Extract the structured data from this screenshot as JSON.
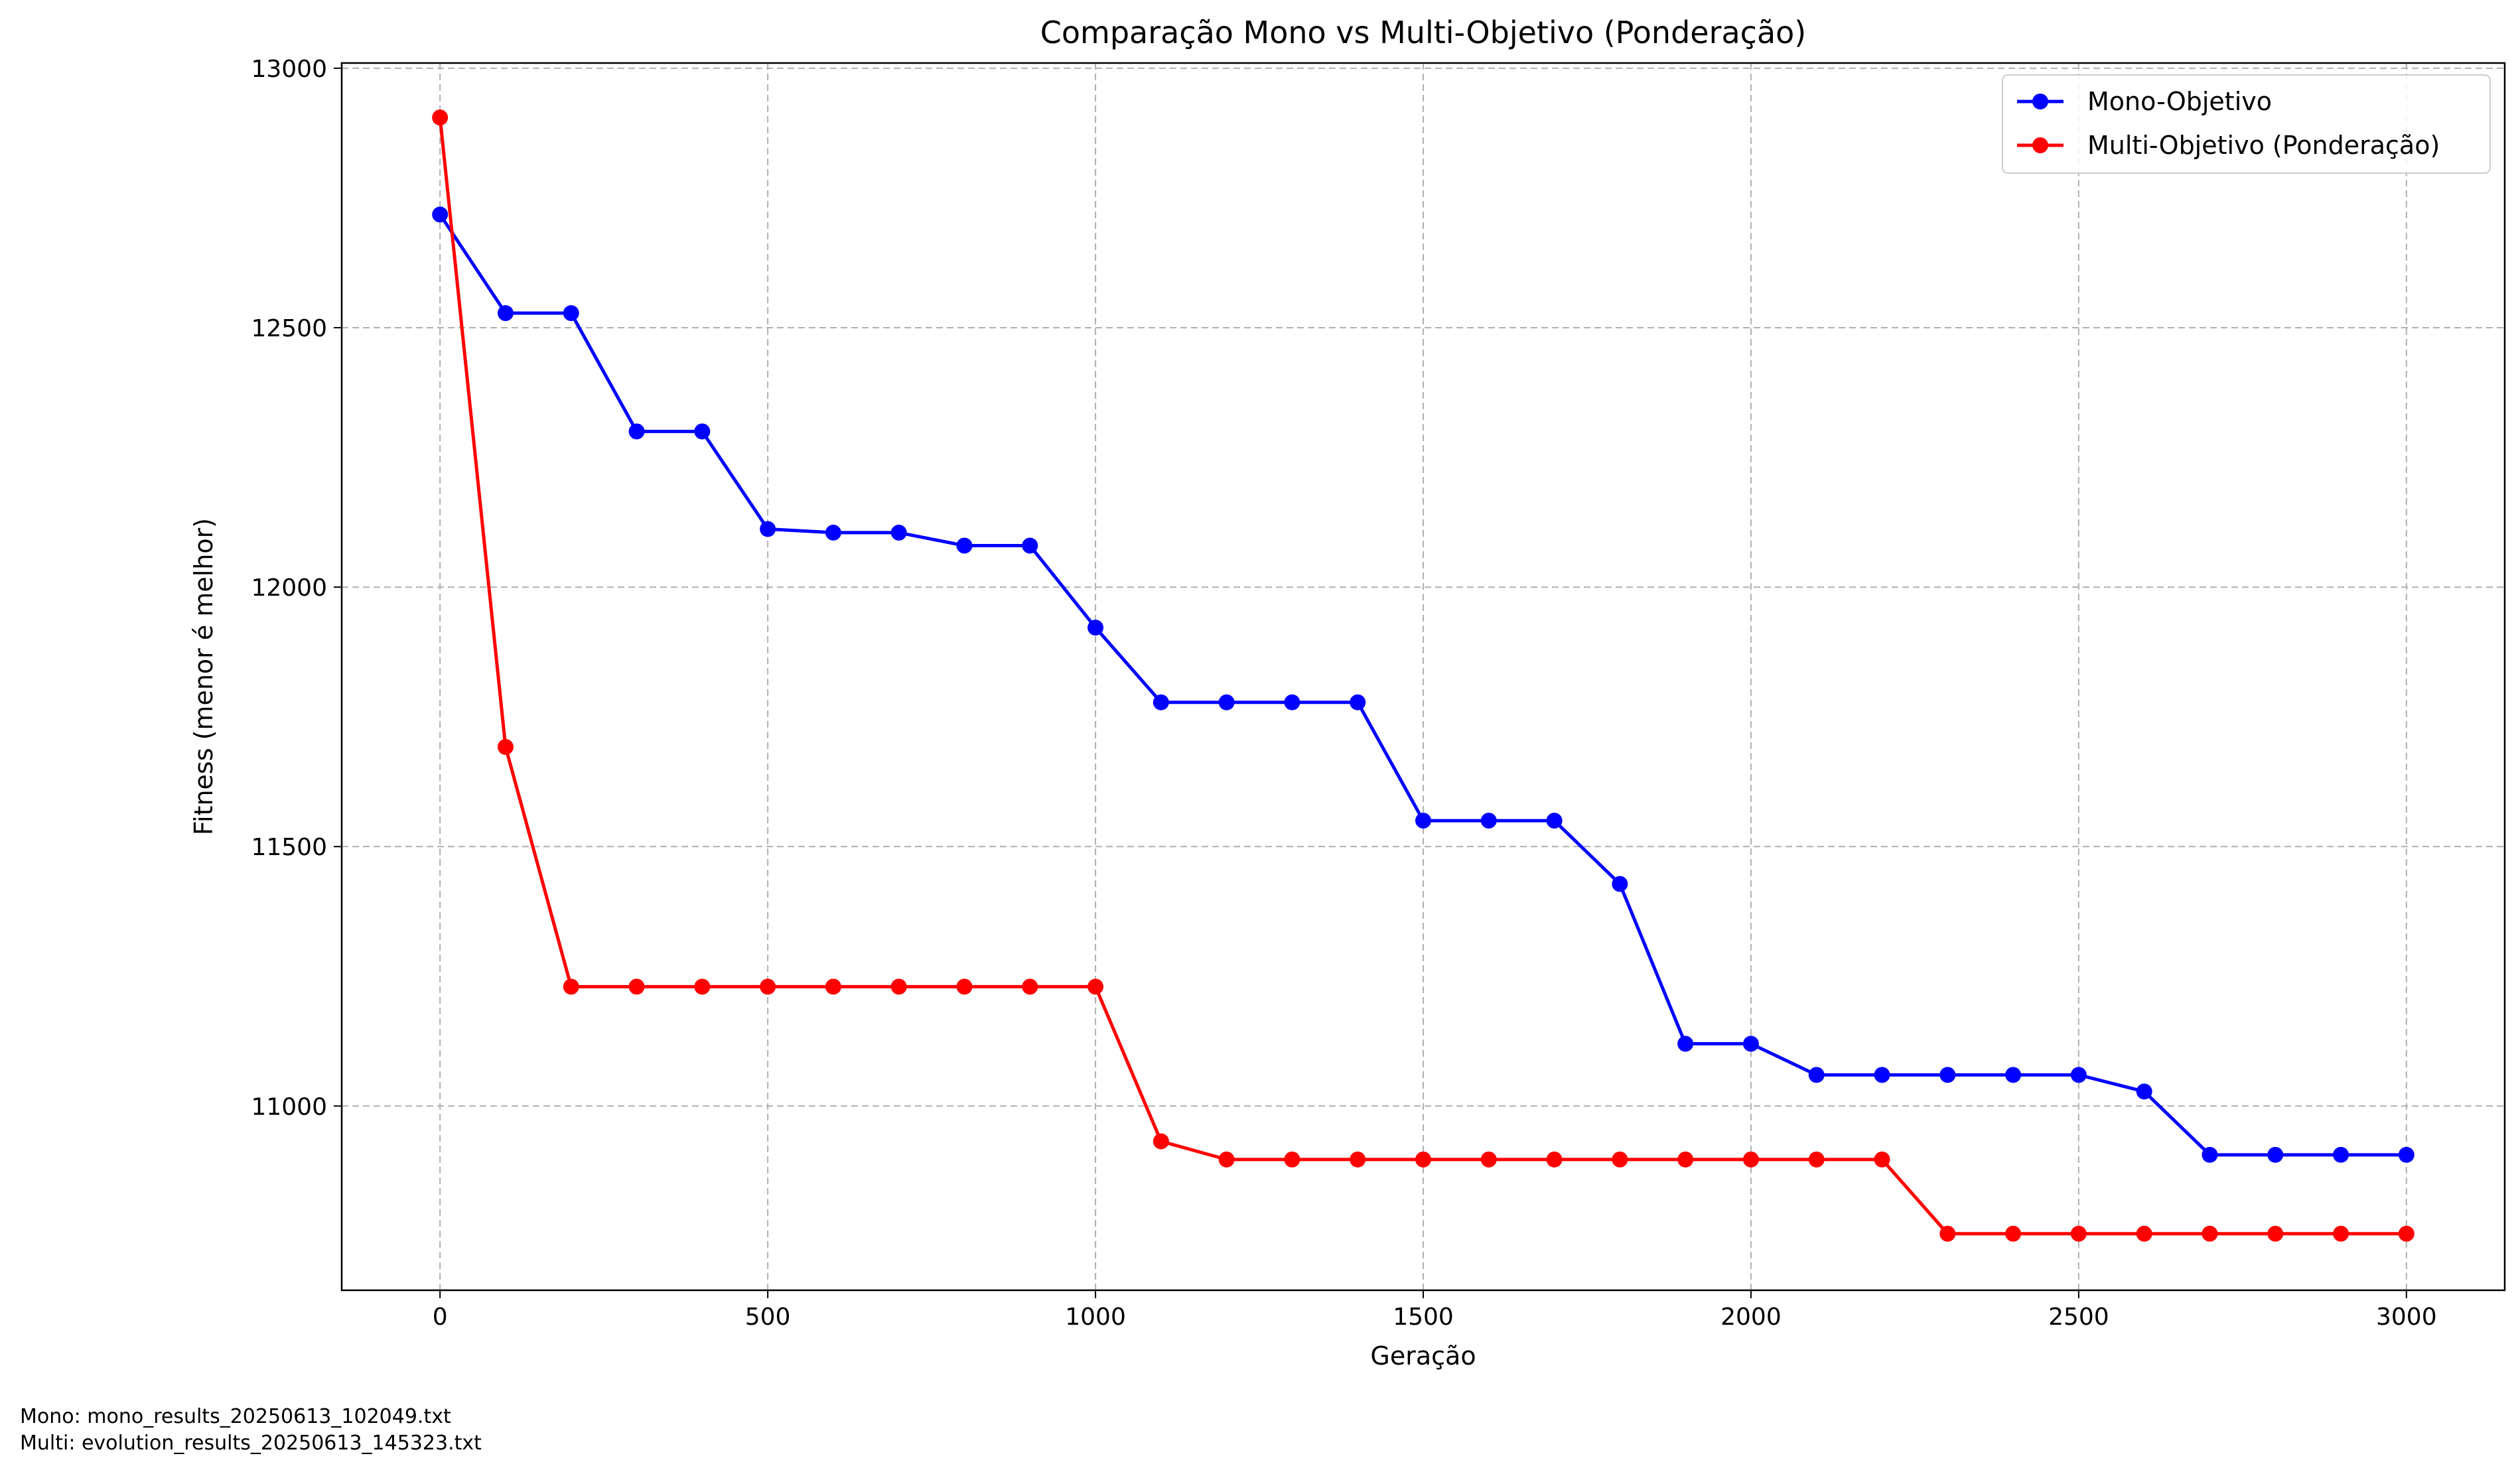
{
  "chart_data": {
    "type": "line",
    "title": "Comparação Mono vs Multi-Objetivo (Ponderação)",
    "xlabel": "Geração",
    "ylabel": "Fitness (menor é melhor)",
    "xlim": [
      -150,
      3150
    ],
    "ylim": [
      10645,
      13010
    ],
    "xticks": [
      0,
      500,
      1000,
      1500,
      2000,
      2500,
      3000
    ],
    "yticks": [
      11000,
      11500,
      12000,
      12500,
      13000
    ],
    "grid": true,
    "legend_position": "top-right",
    "x": [
      0,
      100,
      200,
      300,
      400,
      500,
      600,
      700,
      800,
      900,
      1000,
      1100,
      1200,
      1300,
      1400,
      1500,
      1600,
      1700,
      1800,
      1900,
      2000,
      2100,
      2200,
      2300,
      2400,
      2500,
      2600,
      2700,
      2800,
      2900,
      3000
    ],
    "series": [
      {
        "name": "Mono-Objetivo",
        "color": "#0000ff",
        "values": [
          12718,
          12528,
          12528,
          12300,
          12300,
          12112,
          12105,
          12105,
          12080,
          12080,
          11922,
          11778,
          11778,
          11778,
          11778,
          11550,
          11550,
          11550,
          11428,
          11120,
          11120,
          11060,
          11060,
          11060,
          11060,
          11060,
          11028,
          10906,
          10906,
          10906,
          10906
        ]
      },
      {
        "name": "Multi-Objetivo (Ponderação)",
        "color": "#ff0000",
        "values": [
          12905,
          11692,
          11230,
          11230,
          11230,
          11230,
          11230,
          11230,
          11230,
          11230,
          11230,
          10932,
          10897,
          10897,
          10897,
          10897,
          10897,
          10897,
          10897,
          10897,
          10897,
          10897,
          10897,
          10754,
          10754,
          10754,
          10754,
          10754,
          10754,
          10754,
          10754
        ]
      }
    ]
  },
  "footnotes": {
    "mono": "Mono: mono_results_20250613_102049.txt",
    "multi": "Multi: evolution_results_20250613_145323.txt"
  }
}
